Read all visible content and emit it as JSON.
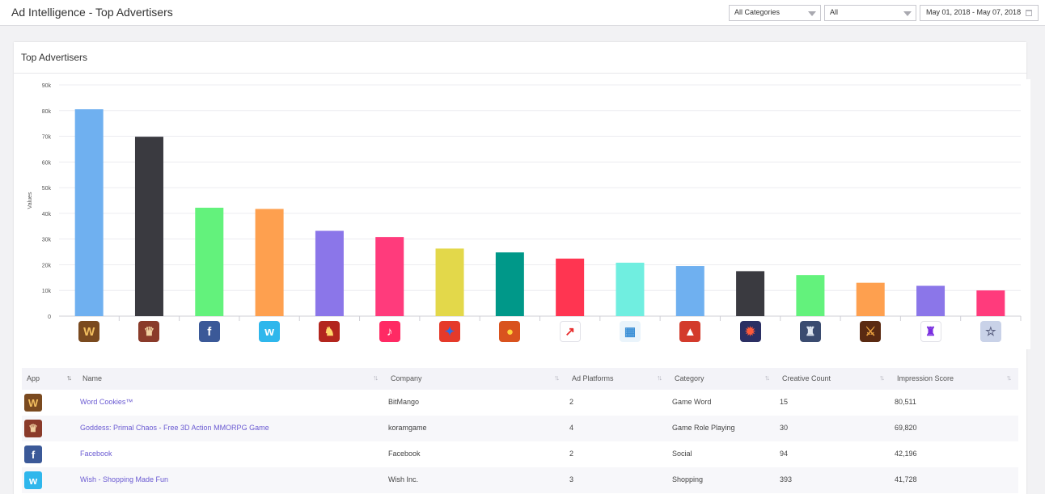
{
  "header": {
    "title": "Ad Intelligence - Top Advertisers",
    "category_select": "All Categories",
    "platform_select": "All",
    "date_range": "May 01, 2018 - May 07, 2018"
  },
  "card": {
    "title": "Top Advertisers"
  },
  "chart_data": {
    "type": "bar",
    "ylabel": "Values",
    "ylim": [
      0,
      90000
    ],
    "yticks": [
      "0",
      "10k",
      "20k",
      "30k",
      "40k",
      "50k",
      "60k",
      "70k",
      "80k",
      "90k"
    ],
    "grid": true,
    "categories": [
      "Word Cookies™",
      "Goddess: Primal Chaos",
      "Facebook",
      "Wish",
      "app-5",
      "app-6",
      "app-7",
      "app-8",
      "app-9",
      "app-10",
      "app-11",
      "app-12",
      "app-13",
      "app-14",
      "app-15",
      "app-16"
    ],
    "values": [
      80511,
      69820,
      42196,
      41728,
      33200,
      30800,
      26300,
      24800,
      22400,
      20800,
      19500,
      17500,
      16000,
      13000,
      11800,
      10000
    ],
    "colors": [
      "#6fb0f0",
      "#3a3a40",
      "#63f27c",
      "#fea04f",
      "#8b76e9",
      "#ff3b7c",
      "#e3d84a",
      "#009889",
      "#ff3551",
      "#70eee0",
      "#6fb0f0",
      "#3a3a40",
      "#63f27c",
      "#fea04f",
      "#8b76e9",
      "#ff3b7c"
    ]
  },
  "icons": [
    {
      "name": "word-cookies-icon",
      "bg": "#7a4a1f",
      "fg": "#f3c060",
      "glyph": "W"
    },
    {
      "name": "goddess-icon",
      "bg": "#8a3b2a",
      "fg": "#f0d0a0",
      "glyph": "♛"
    },
    {
      "name": "facebook-icon",
      "bg": "#3b5998",
      "fg": "#ffffff",
      "glyph": "f"
    },
    {
      "name": "wish-icon",
      "bg": "#2fb7ec",
      "fg": "#ffffff",
      "glyph": "w"
    },
    {
      "name": "rpg-game-icon",
      "bg": "#b3261e",
      "fg": "#ffd66b",
      "glyph": "♞"
    },
    {
      "name": "musically-icon",
      "bg": "#ff2a64",
      "fg": "#ffffff",
      "glyph": "♪"
    },
    {
      "name": "candy-game-icon",
      "bg": "#e53a2a",
      "fg": "#2f6de0",
      "glyph": "✦"
    },
    {
      "name": "bear-game-icon",
      "bg": "#d9531e",
      "fg": "#ffd23a",
      "glyph": "●"
    },
    {
      "name": "zai-app-icon",
      "bg": "#ffffff",
      "fg": "#e82d2d",
      "glyph": "↗"
    },
    {
      "name": "puzzle-game-icon",
      "bg": "#eaf4fb",
      "fg": "#3a8fd6",
      "glyph": "▦"
    },
    {
      "name": "red-game-icon",
      "bg": "#d33b2c",
      "fg": "#ffffff",
      "glyph": "▲"
    },
    {
      "name": "mmo-game-icon",
      "bg": "#2b2f63",
      "fg": "#ff5a3a",
      "glyph": "✹"
    },
    {
      "name": "knight-game-icon",
      "bg": "#3b4c70",
      "fg": "#dfe6f0",
      "glyph": "♜"
    },
    {
      "name": "warrior-game-icon",
      "bg": "#5a2a12",
      "fg": "#e8a040",
      "glyph": "⚔"
    },
    {
      "name": "hat-app-icon",
      "bg": "#ffffff",
      "fg": "#7a2fe0",
      "glyph": "♜"
    },
    {
      "name": "anime-game-icon",
      "bg": "#c9d2e8",
      "fg": "#5a6080",
      "glyph": "☆"
    }
  ],
  "table": {
    "columns": [
      "App",
      "Name",
      "Company",
      "Ad Platforms",
      "Category",
      "Creative Count",
      "Impression Score"
    ],
    "rows": [
      {
        "name": "Word Cookies™",
        "company": "BitMango",
        "platforms": "2",
        "category": "Game Word",
        "creatives": "15",
        "score": "80,511",
        "icon": 0
      },
      {
        "name": "Goddess: Primal Chaos - Free 3D Action MMORPG Game",
        "company": "koramgame",
        "platforms": "4",
        "category": "Game Role Playing",
        "creatives": "30",
        "score": "69,820",
        "icon": 1
      },
      {
        "name": "Facebook",
        "company": "Facebook",
        "platforms": "2",
        "category": "Social",
        "creatives": "94",
        "score": "42,196",
        "icon": 2
      },
      {
        "name": "Wish - Shopping Made Fun",
        "company": "Wish Inc.",
        "platforms": "3",
        "category": "Shopping",
        "creatives": "393",
        "score": "41,728",
        "icon": 3
      }
    ]
  }
}
